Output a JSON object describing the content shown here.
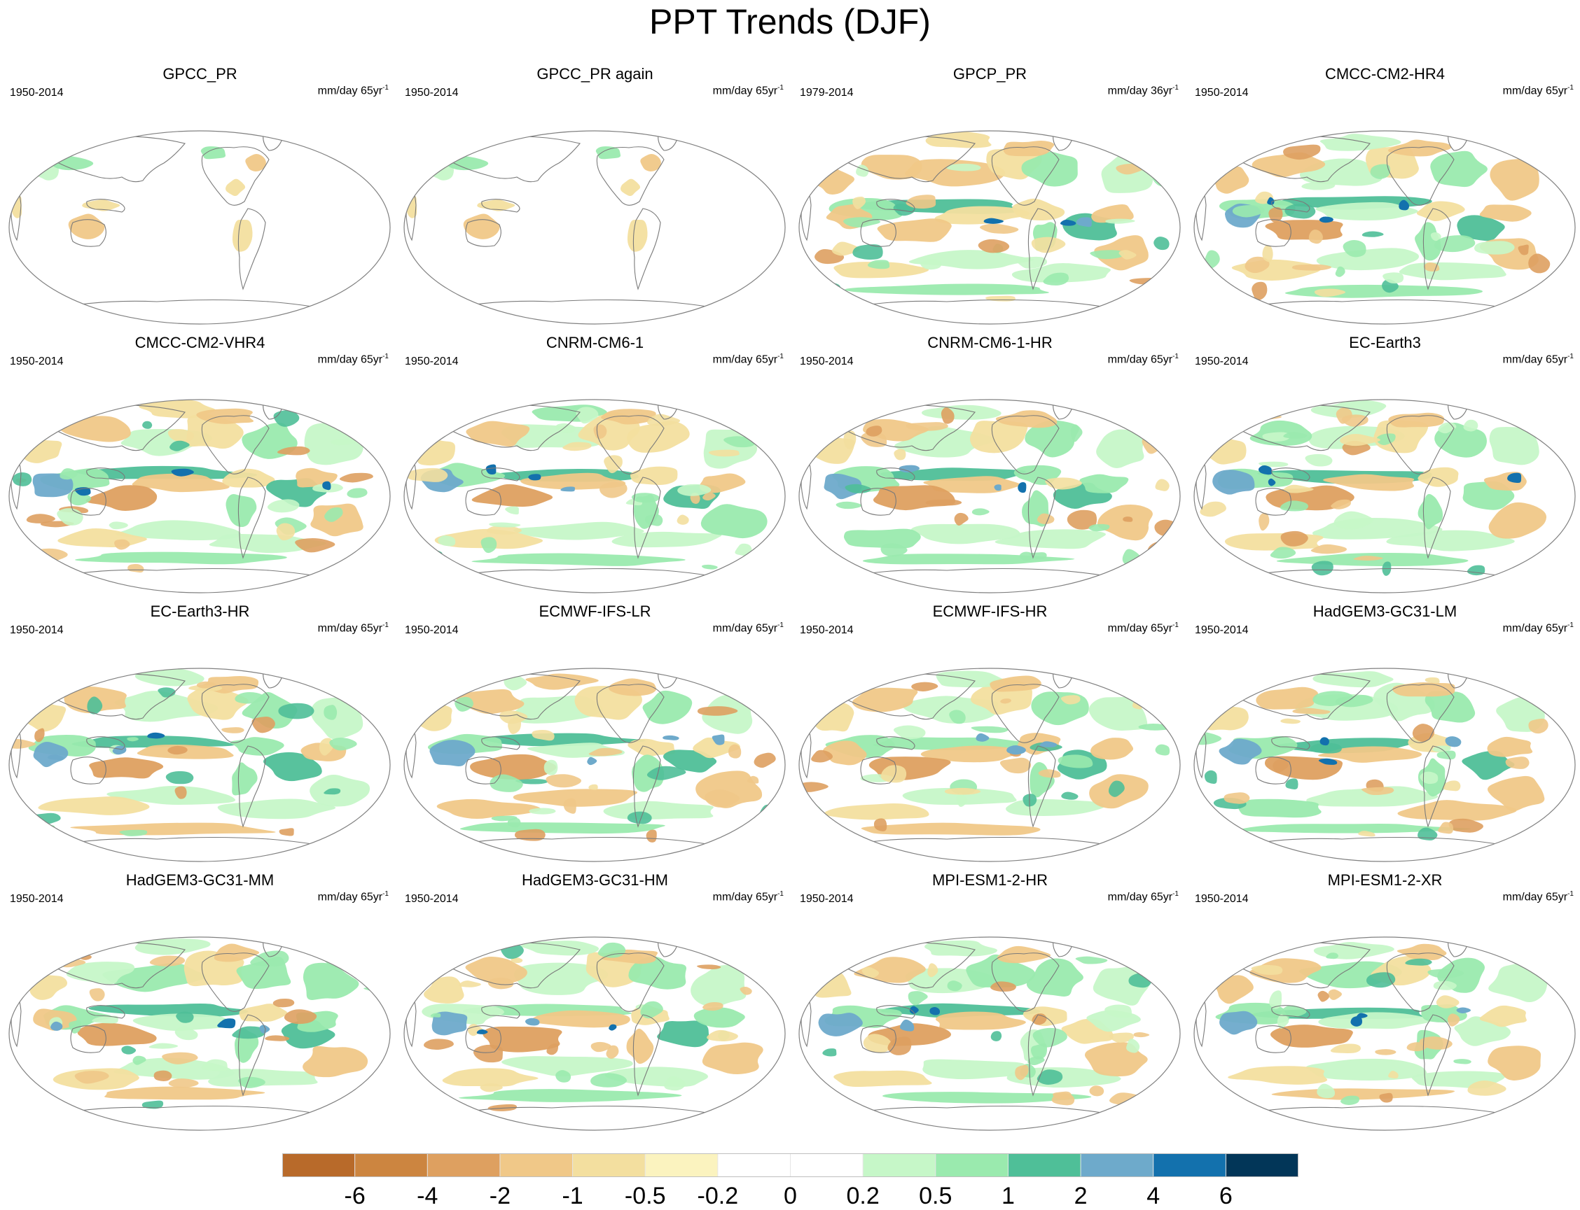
{
  "title": "PPT Trends (DJF)",
  "panels": [
    {
      "name": "GPCC_PR",
      "years": "1950-2014",
      "units": "mm/day 65yr",
      "exp": "-1",
      "coverage": "land",
      "seed": 3
    },
    {
      "name": "GPCC_PR again",
      "years": "1950-2014",
      "units": "mm/day 65yr",
      "exp": "-1",
      "coverage": "land",
      "seed": 3
    },
    {
      "name": "GPCP_PR",
      "years": "1979-2014",
      "units": "mm/day 36yr",
      "exp": "-1",
      "coverage": "global",
      "seed": 11
    },
    {
      "name": "CMCC-CM2-HR4",
      "years": "1950-2014",
      "units": "mm/day 65yr",
      "exp": "-1",
      "coverage": "global",
      "seed": 17
    },
    {
      "name": "CMCC-CM2-VHR4",
      "years": "1950-2014",
      "units": "mm/day 65yr",
      "exp": "-1",
      "coverage": "global",
      "seed": 23
    },
    {
      "name": "CNRM-CM6-1",
      "years": "1950-2014",
      "units": "mm/day 65yr",
      "exp": "-1",
      "coverage": "global",
      "seed": 29
    },
    {
      "name": "CNRM-CM6-1-HR",
      "years": "1950-2014",
      "units": "mm/day 65yr",
      "exp": "-1",
      "coverage": "global",
      "seed": 31
    },
    {
      "name": "EC-Earth3",
      "years": "1950-2014",
      "units": "mm/day 65yr",
      "exp": "-1",
      "coverage": "global",
      "seed": 37
    },
    {
      "name": "EC-Earth3-HR",
      "years": "1950-2014",
      "units": "mm/day 65yr",
      "exp": "-1",
      "coverage": "global",
      "seed": 41
    },
    {
      "name": "ECMWF-IFS-LR",
      "years": "1950-2014",
      "units": "mm/day 65yr",
      "exp": "-1",
      "coverage": "global",
      "seed": 43
    },
    {
      "name": "ECMWF-IFS-HR",
      "years": "1950-2014",
      "units": "mm/day 65yr",
      "exp": "-1",
      "coverage": "global",
      "seed": 47
    },
    {
      "name": "HadGEM3-GC31-LM",
      "years": "1950-2014",
      "units": "mm/day 65yr",
      "exp": "-1",
      "coverage": "global",
      "seed": 53
    },
    {
      "name": "HadGEM3-GC31-MM",
      "years": "1950-2014",
      "units": "mm/day 65yr",
      "exp": "-1",
      "coverage": "global",
      "seed": 59
    },
    {
      "name": "HadGEM3-GC31-HM",
      "years": "1950-2014",
      "units": "mm/day 65yr",
      "exp": "-1",
      "coverage": "global",
      "seed": 61
    },
    {
      "name": "MPI-ESM1-2-HR",
      "years": "1950-2014",
      "units": "mm/day 65yr",
      "exp": "-1",
      "coverage": "global",
      "seed": 67
    },
    {
      "name": "MPI-ESM1-2-XR",
      "years": "1950-2014",
      "units": "mm/day 65yr",
      "exp": "-1",
      "coverage": "global",
      "seed": 71
    }
  ],
  "colorbar": {
    "colors": [
      "#b86a2a",
      "#cc8540",
      "#dea060",
      "#f0c888",
      "#f3df9f",
      "#fbf3bf",
      "#ffffff",
      "#ffffff",
      "#c6f7c8",
      "#9aeaae",
      "#4fbf98",
      "#6eaacb",
      "#1371ad",
      "#023658"
    ],
    "labels": [
      "-6",
      "-4",
      "-2",
      "-1",
      "-0.5",
      "-0.2",
      "0",
      "0.2",
      "0.5",
      "1",
      "2",
      "4",
      "6"
    ]
  }
}
